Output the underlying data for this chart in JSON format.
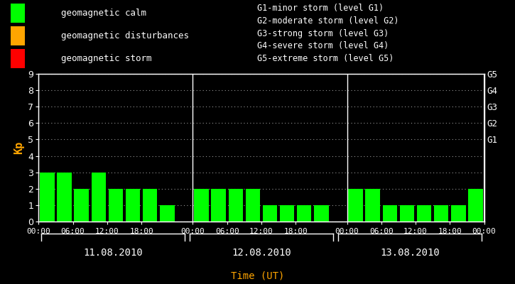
{
  "background_color": "#000000",
  "plot_bg_color": "#000000",
  "bar_color_calm": "#00ff00",
  "bar_color_disturbance": "#ffa500",
  "bar_color_storm": "#ff0000",
  "grid_color": "#ffffff",
  "text_color": "#ffffff",
  "ylabel_color": "#ffa500",
  "xlabel_color": "#ffa500",
  "ylabel": "Kp",
  "xlabel": "Time (UT)",
  "ylim": [
    0,
    9
  ],
  "yticks": [
    0,
    1,
    2,
    3,
    4,
    5,
    6,
    7,
    8,
    9
  ],
  "days": [
    "11.08.2010",
    "12.08.2010",
    "13.08.2010"
  ],
  "kp_values": [
    [
      3,
      3,
      2,
      3,
      2,
      2,
      2,
      1
    ],
    [
      2,
      2,
      2,
      2,
      1,
      1,
      1,
      1
    ],
    [
      2,
      2,
      1,
      1,
      1,
      1,
      1,
      2
    ]
  ],
  "time_ticks": [
    "00:00",
    "06:00",
    "12:00",
    "18:00"
  ],
  "g_labels": [
    "G5",
    "G4",
    "G3",
    "G2",
    "G1"
  ],
  "g_values": [
    9,
    8,
    7,
    6,
    5
  ],
  "legend_items": [
    {
      "label": "geomagnetic calm",
      "color": "#00ff00"
    },
    {
      "label": "geomagnetic disturbances",
      "color": "#ffa500"
    },
    {
      "label": "geomagnetic storm",
      "color": "#ff0000"
    }
  ],
  "storm_descriptions": [
    "G1-minor storm (level G1)",
    "G2-moderate storm (level G2)",
    "G3-strong storm (level G3)",
    "G4-severe storm (level G4)",
    "G5-extreme storm (level G5)"
  ]
}
